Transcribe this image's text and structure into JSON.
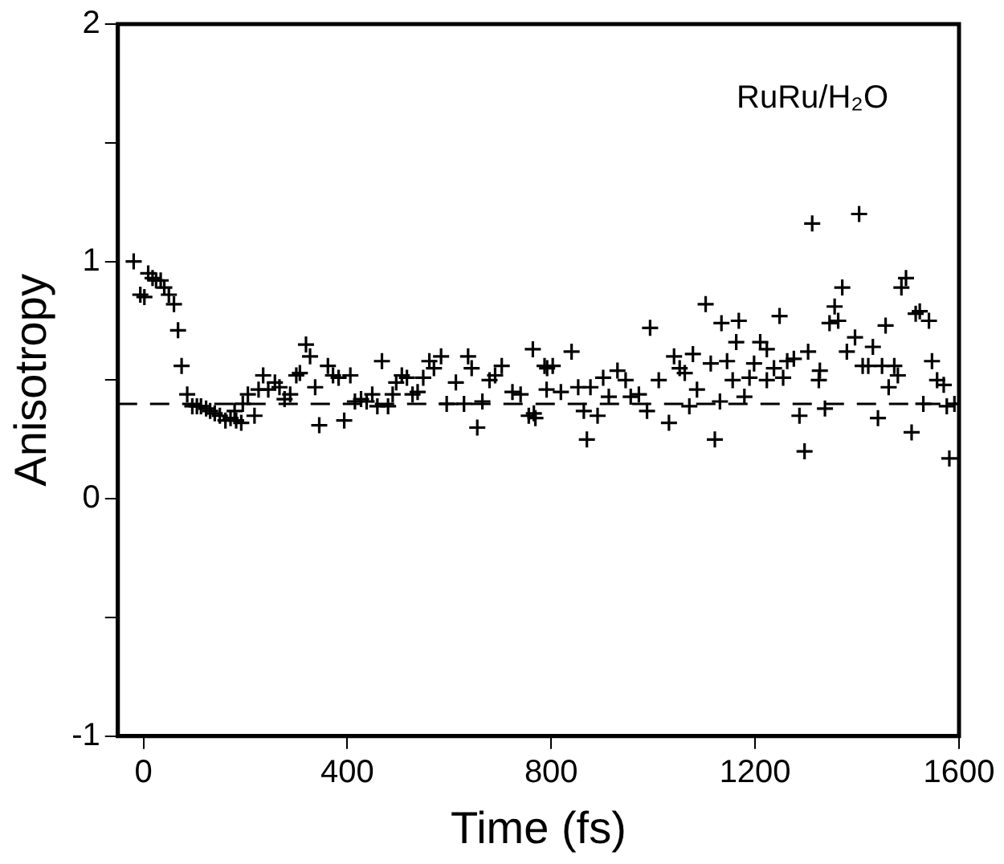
{
  "chart_data": {
    "type": "scatter",
    "xlabel": "Time (fs)",
    "ylabel": "Anisotropy",
    "annotations": [
      "RuRu/H₂O"
    ],
    "marker": "cross",
    "grid": false,
    "legend": false,
    "xlim": [
      -50,
      1600
    ],
    "xticks": [
      0,
      400,
      800,
      1200,
      1600
    ],
    "ylim": [
      -1,
      2
    ],
    "yticks": [
      -1,
      {
        "value": -0.5,
        "label": null
      },
      0,
      {
        "value": 0.5,
        "label": null
      },
      1,
      {
        "value": 1.5,
        "label": null
      },
      2
    ],
    "ref_lines": [
      {
        "axis": "y",
        "value": 0.4,
        "label": null,
        "line_style": "dashed",
        "color": "#000000"
      }
    ],
    "series": [
      {
        "color": "#000000",
        "x": [
          -19,
          -6,
          2,
          9.5,
          18,
          25,
          34,
          41,
          50,
          60,
          68,
          75,
          86,
          96,
          105,
          113,
          123,
          131,
          140,
          150,
          161,
          171,
          182,
          192,
          179,
          195,
          205,
          218,
          226,
          235,
          245,
          258,
          267,
          277,
          288,
          300,
          307,
          319,
          327,
          337,
          345,
          362,
          372,
          383,
          394,
          406,
          415,
          427,
          438,
          449,
          468,
          459,
          480,
          489,
          496,
          507,
          517,
          528,
          538,
          549,
          561,
          570,
          584,
          595,
          613,
          629,
          637,
          644,
          655,
          665,
          679,
          690,
          703,
          724,
          740,
          756,
          766,
          764,
          787,
          769,
          792,
          803,
          791,
          819,
          840,
          853,
          870,
          864,
          877,
          891,
          902,
          913,
          930,
          946,
          956,
          972,
          988,
          994,
          1011,
          1031,
          1041,
          1052,
          1062,
          1071,
          1078,
          1086,
          1103,
          1113,
          1121,
          1131,
          1134,
          1145,
          1156,
          1163,
          1168,
          1179,
          1189,
          1198,
          1210,
          1223,
          1223,
          1237,
          1248,
          1255,
          1263,
          1276,
          1287,
          1297,
          1304,
          1312,
          1325,
          1327,
          1337,
          1346,
          1356,
          1363,
          1371,
          1380,
          1396,
          1404,
          1411,
          1422,
          1431,
          1441,
          1449,
          1456,
          1462,
          1473,
          1480,
          1487,
          1496,
          1507,
          1515,
          1523,
          1530,
          1541,
          1547,
          1557,
          1570,
          1576,
          1581,
          1591
        ],
        "values": [
          1.0,
          0.86,
          0.85,
          0.95,
          0.93,
          0.92,
          0.92,
          0.89,
          0.86,
          0.82,
          0.71,
          0.56,
          0.44,
          0.39,
          0.39,
          0.39,
          0.38,
          0.37,
          0.36,
          0.35,
          0.33,
          0.34,
          0.33,
          0.32,
          0.37,
          0.4,
          0.44,
          0.35,
          0.46,
          0.52,
          0.46,
          0.49,
          0.47,
          0.42,
          0.44,
          0.52,
          0.53,
          0.65,
          0.6,
          0.47,
          0.31,
          0.56,
          0.52,
          0.51,
          0.33,
          0.52,
          0.41,
          0.42,
          0.41,
          0.44,
          0.58,
          0.39,
          0.39,
          0.44,
          0.49,
          0.52,
          0.51,
          0.44,
          0.45,
          0.51,
          0.58,
          0.55,
          0.6,
          0.4,
          0.49,
          0.4,
          0.6,
          0.55,
          0.3,
          0.41,
          0.5,
          0.52,
          0.56,
          0.45,
          0.44,
          0.35,
          0.36,
          0.63,
          0.56,
          0.34,
          0.55,
          0.56,
          0.46,
          0.45,
          0.62,
          0.47,
          0.25,
          0.37,
          0.47,
          0.35,
          0.51,
          0.43,
          0.54,
          0.5,
          0.43,
          0.44,
          0.37,
          0.72,
          0.5,
          0.32,
          0.6,
          0.55,
          0.53,
          0.39,
          0.61,
          0.46,
          0.82,
          0.57,
          0.25,
          0.41,
          0.74,
          0.58,
          0.5,
          0.66,
          0.75,
          0.43,
          0.51,
          0.57,
          0.66,
          0.63,
          0.5,
          0.55,
          0.77,
          0.51,
          0.58,
          0.59,
          0.35,
          0.2,
          0.62,
          1.16,
          0.5,
          0.54,
          0.38,
          0.74,
          0.81,
          0.75,
          0.89,
          0.62,
          0.68,
          1.2,
          0.56,
          0.56,
          0.64,
          0.34,
          0.56,
          0.73,
          0.47,
          0.56,
          0.52,
          0.89,
          0.93,
          0.28,
          0.78,
          0.79,
          0.4,
          0.75,
          0.58,
          0.5,
          0.48,
          0.39,
          0.17,
          0.4
        ]
      }
    ]
  }
}
